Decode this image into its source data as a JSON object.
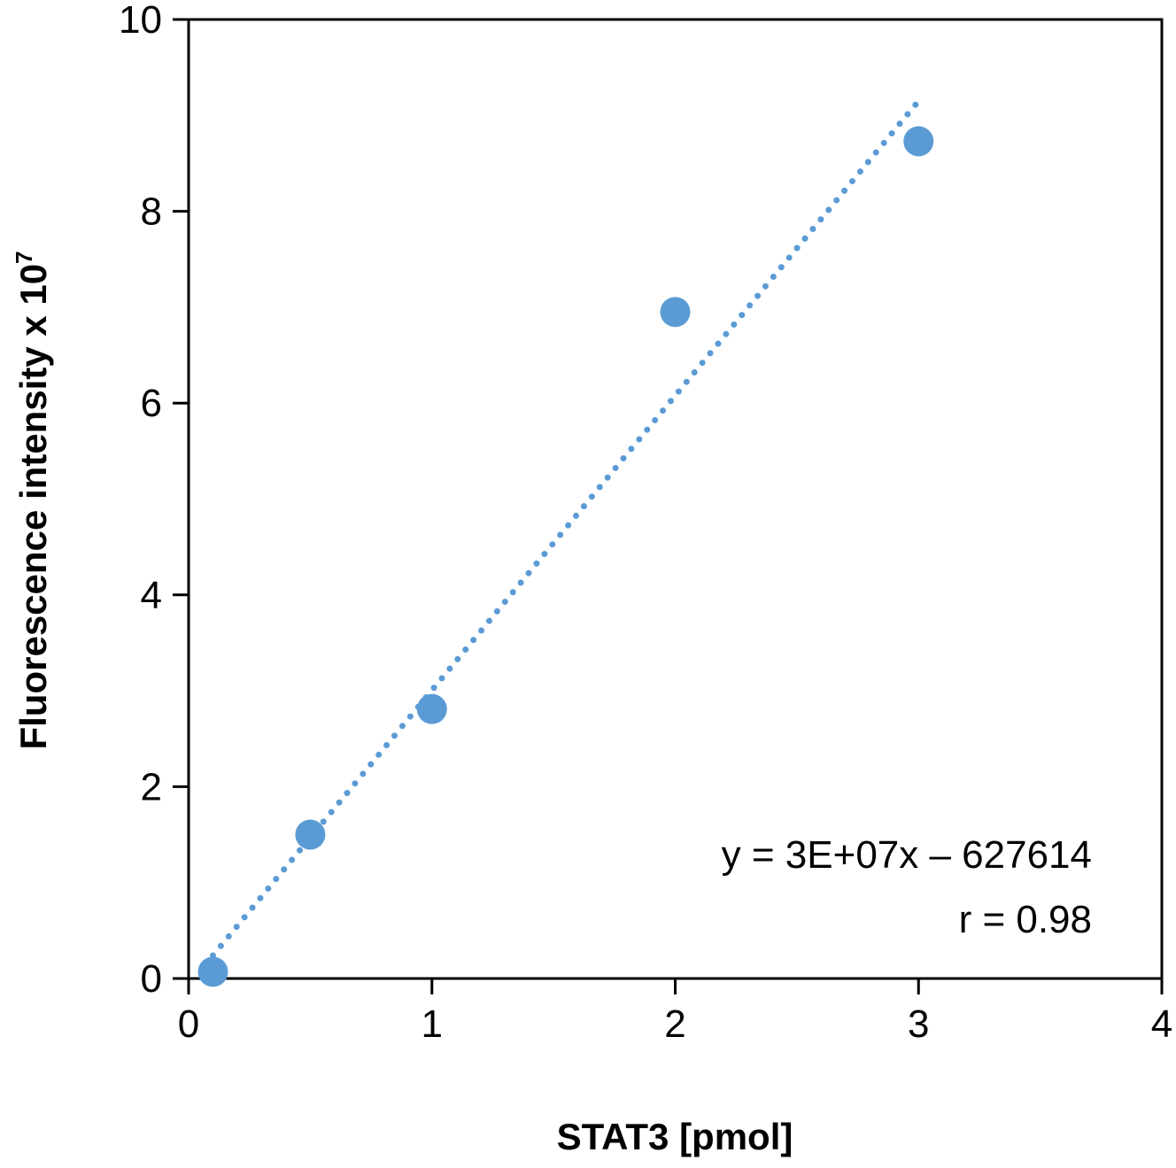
{
  "chart_data": {
    "type": "scatter",
    "xlabel": "STAT3 [pmol]",
    "ylabel": "Fluorescence intensity x 10",
    "ylabel_superscript": "7",
    "xlim": [
      0,
      4
    ],
    "ylim": [
      0,
      10
    ],
    "xticks": [
      "0",
      "1",
      "2",
      "3",
      "4"
    ],
    "yticks": [
      "0",
      "2",
      "4",
      "6",
      "8",
      "10"
    ],
    "grid": false,
    "marker_color": "#5b9bd5",
    "points": [
      {
        "x": 0.1,
        "y": 0.07
      },
      {
        "x": 0.5,
        "y": 1.5
      },
      {
        "x": 1,
        "y": 2.81
      },
      {
        "x": 2,
        "y": 6.95
      },
      {
        "x": 3,
        "y": 8.73
      }
    ],
    "trendline": {
      "style": "dotted",
      "x": [
        0.1,
        3
      ],
      "y": [
        0.24,
        9.15
      ]
    },
    "annotations": [
      "y = 3E+07x – 627614",
      "r = 0.98"
    ]
  }
}
